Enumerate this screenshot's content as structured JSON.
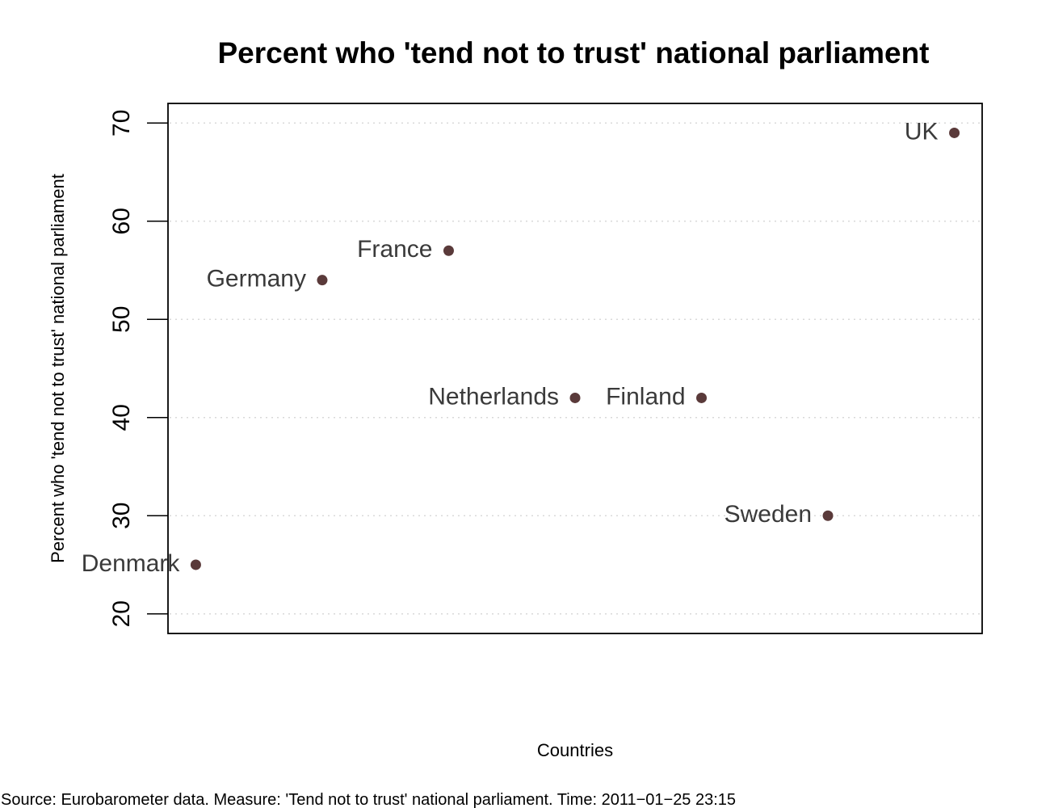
{
  "chart_data": {
    "type": "scatter",
    "title": "Percent who 'tend not to trust' national parliament",
    "xlabel": "Countries",
    "ylabel": "Percent who 'tend not to trust' national parliament",
    "ylim": [
      18,
      72
    ],
    "yticks": [
      20,
      30,
      40,
      50,
      60,
      70
    ],
    "grid": true,
    "points": [
      {
        "label": "Denmark",
        "x": 1,
        "y": 25
      },
      {
        "label": "Germany",
        "x": 2,
        "y": 54
      },
      {
        "label": "France",
        "x": 3,
        "y": 57
      },
      {
        "label": "Netherlands",
        "x": 4,
        "y": 42
      },
      {
        "label": "Finland",
        "x": 5,
        "y": 42
      },
      {
        "label": "Sweden",
        "x": 6,
        "y": 30
      },
      {
        "label": "UK",
        "x": 7,
        "y": 69
      }
    ],
    "xlim": [
      0.78,
      7.22
    ],
    "point_color": "#5a3a3a"
  },
  "footer": {
    "source": "Source: Eurobarometer data. Measure: 'Tend not to trust' national parliament. Time:   2011−01−25 23:15"
  }
}
